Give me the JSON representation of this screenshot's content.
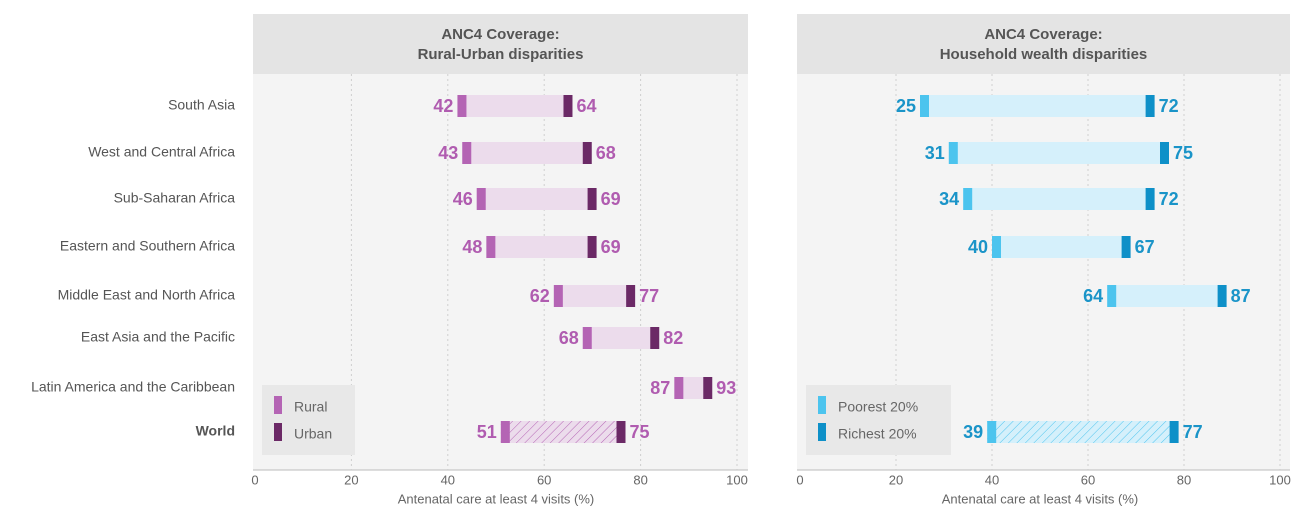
{
  "chart_data": [
    {
      "type": "dumbbell",
      "title": "ANC4 Coverage:",
      "subtitle": "Rural-Urban disparities",
      "xlabel": "Antenatal care at least 4 visits (%)",
      "categories": [
        "South Asia",
        "West and Central Africa",
        "Sub-Saharan Africa",
        "Eastern and Southern Africa",
        "Middle East and North Africa",
        "East Asia and the Pacific",
        "Latin America and the Caribbean",
        "World"
      ],
      "series": [
        {
          "name": "Rural",
          "color": "#b464b4",
          "values": [
            42,
            43,
            46,
            48,
            62,
            68,
            87,
            51
          ]
        },
        {
          "name": "Urban",
          "color": "#6b2966",
          "values": [
            64,
            68,
            69,
            69,
            77,
            82,
            93,
            75
          ]
        }
      ],
      "range_color": "#ecdcec",
      "label_color": "#b05cb0",
      "hatched_index": 7,
      "xlim": [
        0,
        100
      ],
      "xticks": [
        0,
        20,
        40,
        60,
        80,
        100
      ],
      "grid": true
    },
    {
      "type": "dumbbell",
      "title": "ANC4 Coverage:",
      "subtitle": "Household wealth disparities",
      "xlabel": "Antenatal care at least 4 visits (%)",
      "series": [
        {
          "name": "Poorest 20%",
          "color": "#4cc4ee",
          "values": [
            25,
            31,
            34,
            40,
            64,
            null,
            null,
            39
          ]
        },
        {
          "name": "Richest 20%",
          "color": "#0e90c8",
          "values": [
            72,
            75,
            72,
            67,
            87,
            null,
            null,
            77
          ]
        }
      ],
      "range_color": "#d5f0fb",
      "label_color": "#1a94c8",
      "hatched_index": 7,
      "xlim": [
        0,
        100
      ],
      "xticks": [
        0,
        20,
        40,
        60,
        80,
        100
      ],
      "grid": true
    }
  ]
}
